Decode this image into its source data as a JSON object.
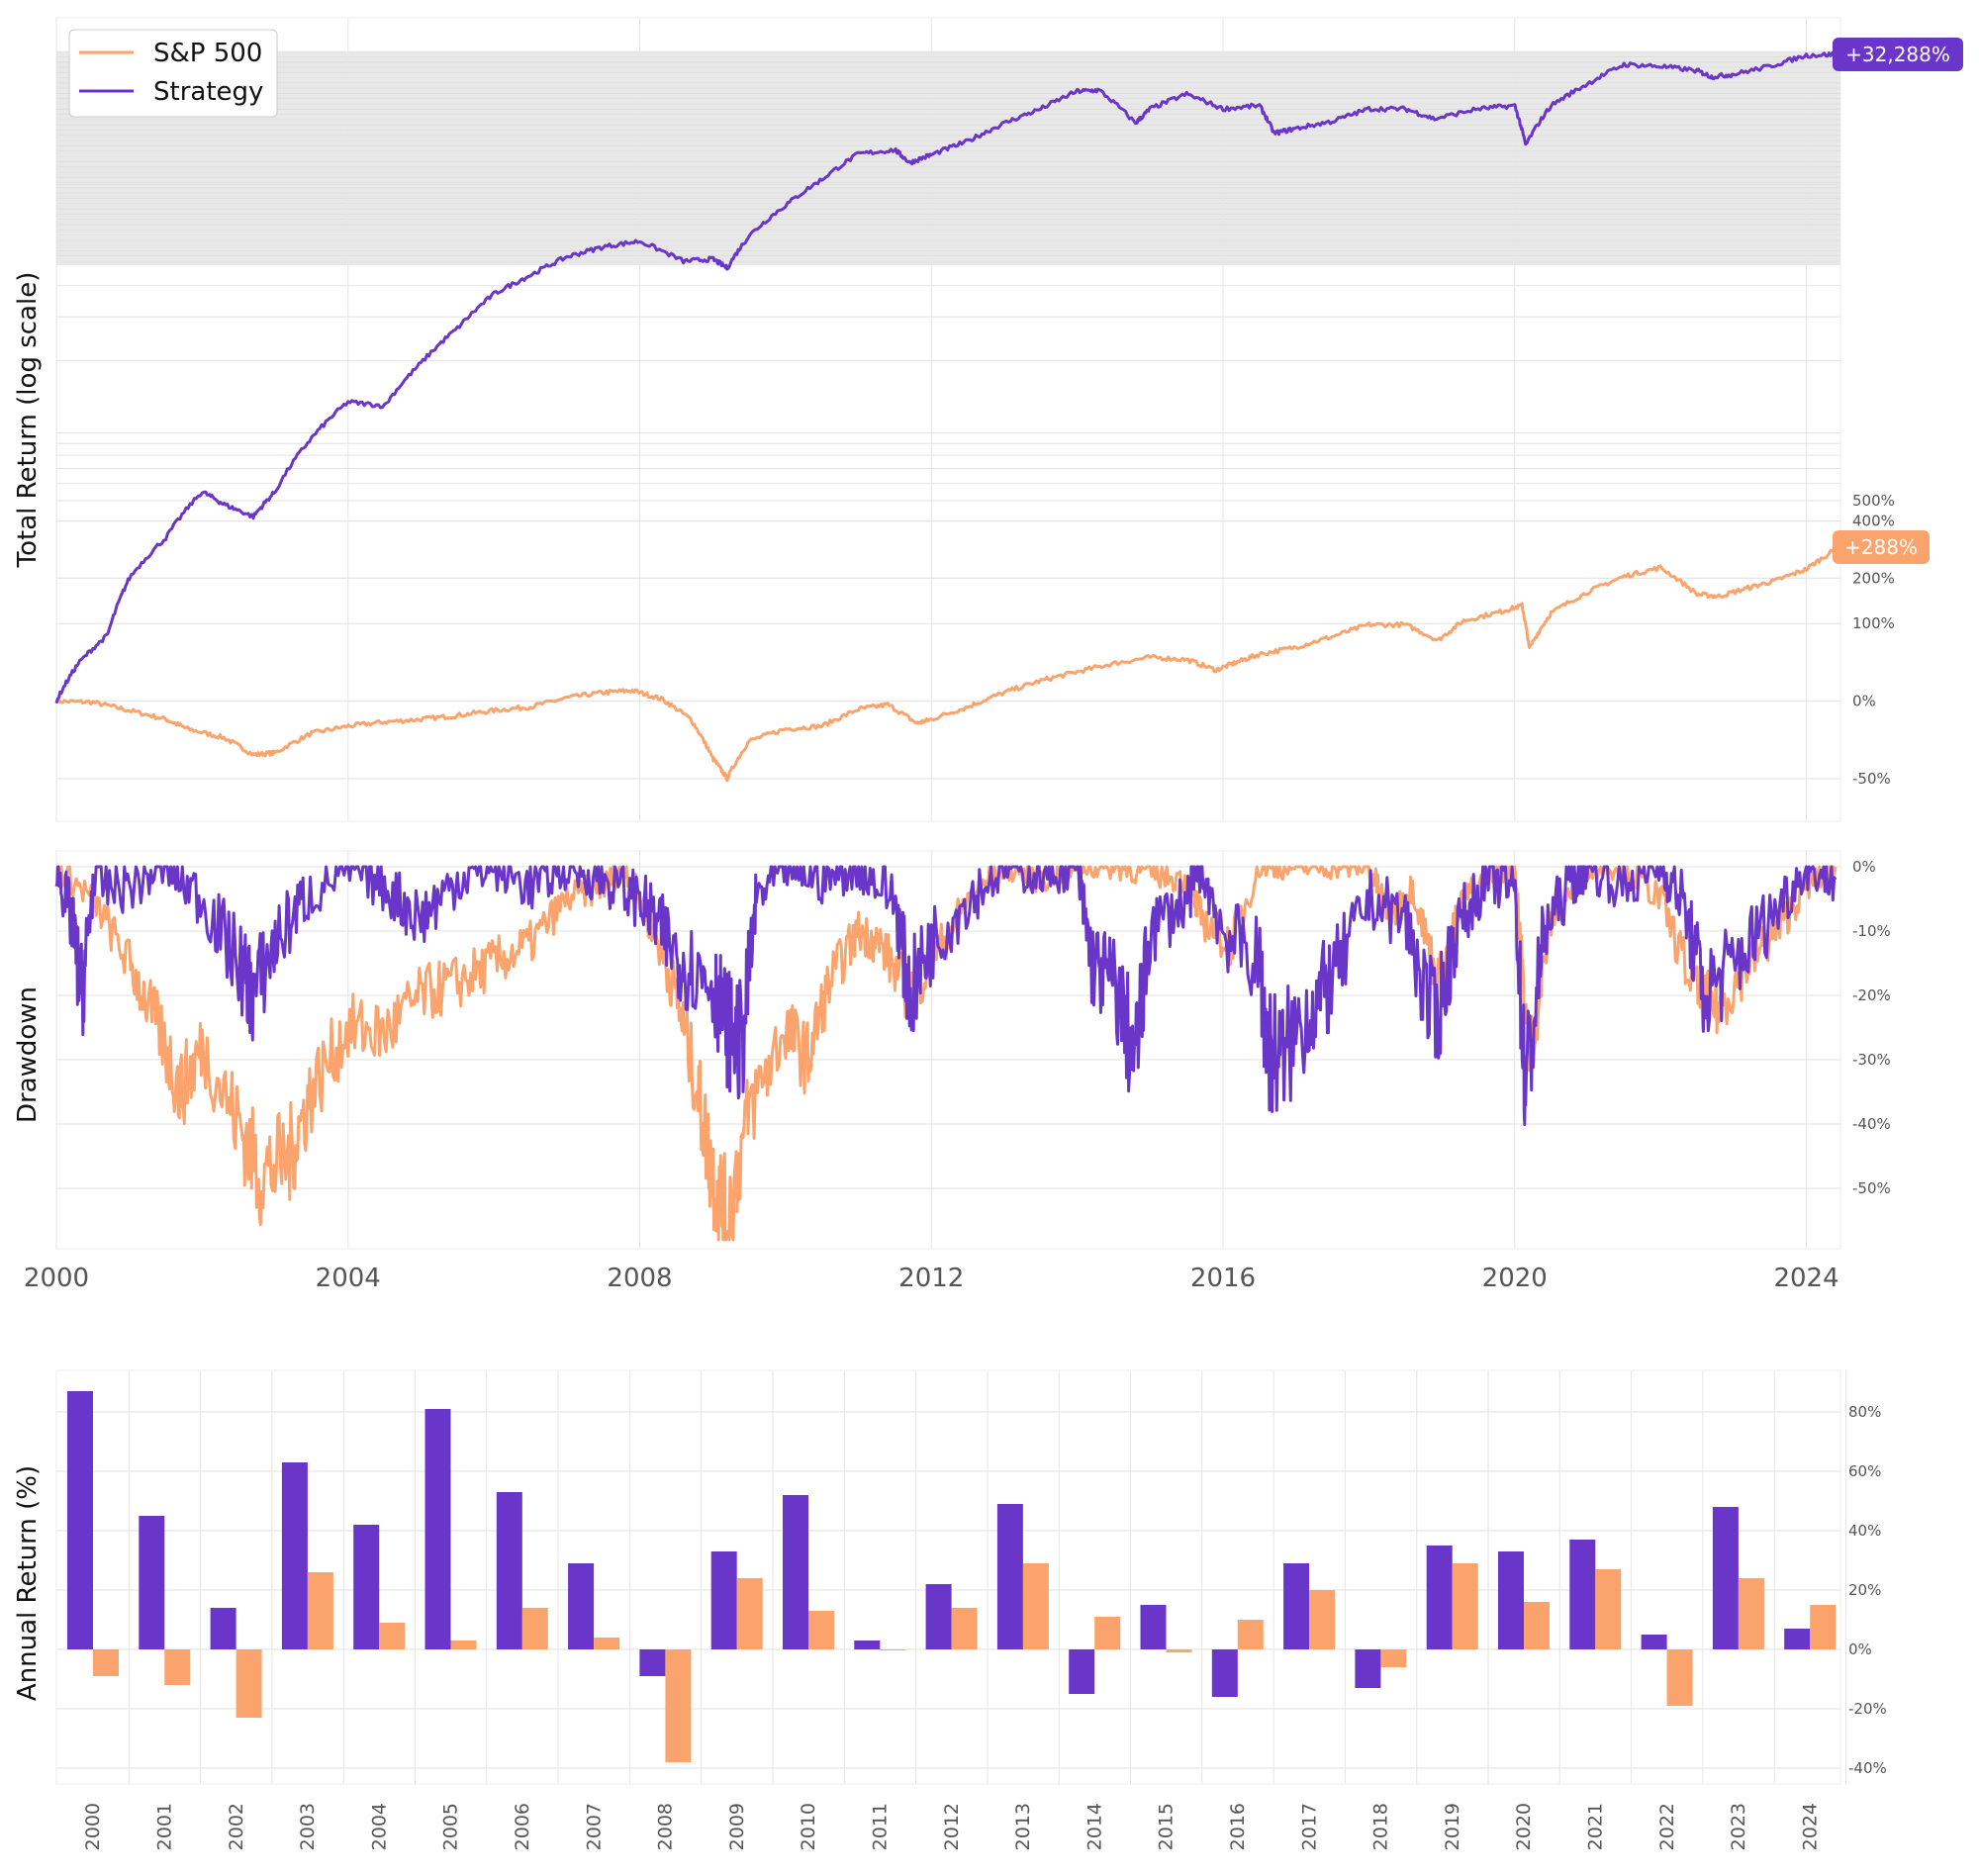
{
  "colors": {
    "strategy": "#6a35c9",
    "sp500": "#fba36c",
    "grid": "#e6e6e6",
    "band": "#e3e3e3"
  },
  "chart_data": [
    {
      "type": "line",
      "name": "total-return",
      "ylabel": "Total Return (log scale)",
      "yscale": "log",
      "xlim": [
        2000,
        2024.4
      ],
      "yticks": [
        "-50%",
        "0%",
        "100%",
        "200%",
        "400%",
        "500%"
      ],
      "ytick_values": [
        -50,
        0,
        100,
        200,
        400,
        500
      ],
      "legend": {
        "placement": "upper-left",
        "entries": [
          "S&P 500",
          "Strategy"
        ]
      },
      "series": [
        {
          "name": "S&P 500",
          "end_label": "+288%",
          "x": [
            2000,
            2000.5,
            2001,
            2001.5,
            2001.8,
            2002.3,
            2002.7,
            2003.0,
            2003.5,
            2004.0,
            2004.5,
            2005.0,
            2005.5,
            2006.0,
            2006.5,
            2007.0,
            2007.5,
            2007.9,
            2008.3,
            2008.7,
            2009.0,
            2009.2,
            2009.5,
            2010.0,
            2010.5,
            2011.0,
            2011.4,
            2011.8,
            2012.0,
            2012.5,
            2013.0,
            2013.5,
            2014.0,
            2014.5,
            2015.0,
            2015.5,
            2015.9,
            2016.2,
            2016.5,
            2017.0,
            2017.5,
            2018.0,
            2018.5,
            2018.95,
            2019.3,
            2019.8,
            2020.1,
            2020.2,
            2020.5,
            2021.0,
            2021.5,
            2022.0,
            2022.5,
            2022.8,
            2023.2,
            2023.6,
            2024.0,
            2024.4
          ],
          "y": [
            0,
            -1,
            -8,
            -15,
            -22,
            -28,
            -38,
            -37,
            -25,
            -20,
            -17,
            -15,
            -12,
            -8,
            -5,
            3,
            8,
            10,
            2,
            -15,
            -40,
            -50,
            -30,
            -22,
            -20,
            -7,
            -3,
            -18,
            -15,
            -5,
            8,
            20,
            30,
            40,
            48,
            45,
            32,
            42,
            52,
            62,
            78,
            98,
            98,
            72,
            105,
            122,
            135,
            60,
            120,
            165,
            205,
            230,
            160,
            155,
            175,
            195,
            225,
            288
          ]
        },
        {
          "name": "Strategy",
          "end_label": "+32,288%",
          "x": [
            2000,
            2000.3,
            2000.7,
            2001.0,
            2001.5,
            2002.0,
            2002.3,
            2002.7,
            2003.0,
            2003.5,
            2004.0,
            2004.5,
            2005.0,
            2005.5,
            2006.0,
            2006.5,
            2007.0,
            2007.5,
            2008.0,
            2008.6,
            2009.0,
            2009.2,
            2009.5,
            2010.0,
            2010.5,
            2011.0,
            2011.5,
            2011.7,
            2012.0,
            2012.5,
            2013.0,
            2013.5,
            2014.0,
            2014.3,
            2014.8,
            2015.0,
            2015.5,
            2016.0,
            2016.5,
            2016.7,
            2017.0,
            2017.5,
            2018.0,
            2018.5,
            2018.9,
            2019.5,
            2020.0,
            2020.15,
            2020.5,
            2021.0,
            2021.5,
            2022.0,
            2022.5,
            2022.7,
            2023.0,
            2023.5,
            2024.0,
            2024.4
          ],
          "y": [
            0,
            40,
            80,
            200,
            330,
            550,
            480,
            420,
            550,
            950,
            1350,
            1300,
            1950,
            2700,
            3700,
            4400,
            5200,
            5700,
            6000,
            5000,
            5100,
            4700,
            6300,
            8300,
            10500,
            13200,
            13700,
            12200,
            13100,
            14800,
            17400,
            19800,
            23200,
            23400,
            17400,
            19800,
            22600,
            19800,
            20400,
            15900,
            16600,
            17700,
            19800,
            19800,
            18100,
            19800,
            20400,
            14300,
            20400,
            24800,
            29500,
            29000,
            27900,
            26400,
            27000,
            29000,
            32000,
            32288
          ]
        }
      ]
    },
    {
      "type": "line",
      "name": "drawdown",
      "ylabel": "Drawdown",
      "ylim": [
        -60,
        0
      ],
      "yticks": [
        "0%",
        "-10%",
        "-20%",
        "-30%",
        "-40%",
        "-50%"
      ],
      "ytick_values": [
        0,
        -10,
        -20,
        -30,
        -40,
        -50
      ],
      "xticks": [
        "2000",
        "2004",
        "2008",
        "2012",
        "2016",
        "2020",
        "2024"
      ],
      "xtick_values": [
        2000,
        2004,
        2008,
        2012,
        2016,
        2020,
        2024
      ],
      "series": [
        {
          "name": "S&P 500",
          "x": [
            2000,
            2000.5,
            2001.0,
            2001.4,
            2001.7,
            2002.0,
            2002.5,
            2002.8,
            2003.2,
            2003.5,
            2004.0,
            2004.5,
            2005.0,
            2005.5,
            2006.0,
            2006.5,
            2007.0,
            2007.5,
            2007.8,
            2008.2,
            2008.5,
            2008.8,
            2009.0,
            2009.2,
            2009.5,
            2010.0,
            2010.3,
            2010.6,
            2011.0,
            2011.3,
            2011.7,
            2012.0,
            2012.5,
            2013.0,
            2013.5,
            2014.0,
            2014.5,
            2015.0,
            2015.5,
            2015.7,
            2016.1,
            2016.5,
            2017.0,
            2017.5,
            2018.0,
            2018.3,
            2018.6,
            2018.95,
            2019.3,
            2019.7,
            2020.0,
            2020.2,
            2020.5,
            2021.0,
            2021.5,
            2022.0,
            2022.5,
            2022.8,
            2023.2,
            2023.6,
            2024.0,
            2024.4
          ],
          "y": [
            0,
            -5,
            -15,
            -25,
            -35,
            -28,
            -40,
            -48,
            -45,
            -35,
            -25,
            -26,
            -20,
            -18,
            -15,
            -12,
            -5,
            -3,
            0,
            -10,
            -20,
            -35,
            -48,
            -55,
            -38,
            -25,
            -30,
            -18,
            -10,
            -12,
            -20,
            -15,
            -5,
            0,
            -2,
            0,
            0,
            -1,
            -2,
            -8,
            -12,
            0,
            0,
            0,
            0,
            -8,
            -3,
            -18,
            -5,
            -1,
            0,
            -30,
            -8,
            0,
            0,
            -5,
            -20,
            -22,
            -15,
            -10,
            -3,
            0
          ]
        },
        {
          "name": "Strategy",
          "x": [
            2000,
            2000.2,
            2000.35,
            2000.5,
            2001.0,
            2001.5,
            2002.0,
            2002.5,
            2002.7,
            2003.0,
            2003.4,
            2004.0,
            2004.5,
            2005.0,
            2005.5,
            2006.0,
            2006.5,
            2007.0,
            2007.5,
            2008.0,
            2008.3,
            2008.6,
            2009.0,
            2009.2,
            2009.4,
            2009.6,
            2010.0,
            2010.5,
            2011.0,
            2011.5,
            2011.7,
            2012.0,
            2012.5,
            2013.0,
            2013.5,
            2014.0,
            2014.2,
            2014.5,
            2014.8,
            2015.0,
            2015.5,
            2015.7,
            2016.0,
            2016.5,
            2016.6,
            2016.8,
            2017.2,
            2017.5,
            2018.0,
            2018.5,
            2018.9,
            2019.2,
            2019.6,
            2020.0,
            2020.15,
            2020.4,
            2020.8,
            2021.0,
            2021.5,
            2022.0,
            2022.3,
            2022.6,
            2023.0,
            2023.5,
            2024.0,
            2024.4
          ],
          "y": [
            0,
            -8,
            -20,
            -3,
            -3,
            0,
            -5,
            -15,
            -20,
            -12,
            -5,
            0,
            -3,
            -8,
            -2,
            0,
            -3,
            0,
            -2,
            -5,
            -10,
            -15,
            -18,
            -25,
            -28,
            -5,
            0,
            -2,
            0,
            -5,
            -20,
            -12,
            -5,
            0,
            -1,
            0,
            -15,
            -18,
            -30,
            -10,
            -5,
            0,
            -10,
            -15,
            -28,
            -30,
            -22,
            -18,
            -5,
            -8,
            -25,
            -10,
            -2,
            -3,
            -35,
            -10,
            -2,
            0,
            -3,
            0,
            -5,
            -20,
            -15,
            -8,
            0,
            -2
          ]
        }
      ]
    },
    {
      "type": "bar",
      "name": "annual-return",
      "ylabel": "Annual Return (%)",
      "ylim": [
        -45,
        92
      ],
      "yticks": [
        "80%",
        "60%",
        "40%",
        "20%",
        "0%",
        "-20%",
        "-40%"
      ],
      "ytick_values": [
        80,
        60,
        40,
        20,
        0,
        -20,
        -40
      ],
      "categories": [
        "2000",
        "2001",
        "2002",
        "2003",
        "2004",
        "2005",
        "2006",
        "2007",
        "2008",
        "2009",
        "2010",
        "2011",
        "2012",
        "2013",
        "2014",
        "2015",
        "2016",
        "2017",
        "2018",
        "2019",
        "2020",
        "2021",
        "2022",
        "2023",
        "2024"
      ],
      "series": [
        {
          "name": "Strategy",
          "values": [
            87,
            45,
            14,
            63,
            42,
            81,
            53,
            29,
            -9,
            33,
            52,
            3,
            22,
            49,
            -15,
            15,
            -16,
            29,
            -13,
            35,
            33,
            37,
            5,
            48,
            7
          ]
        },
        {
          "name": "S&P 500",
          "values": [
            -9,
            -12,
            -23,
            26,
            9,
            3,
            14,
            4,
            -38,
            24,
            13,
            0,
            14,
            29,
            11,
            -1,
            10,
            20,
            -6,
            29,
            16,
            27,
            -19,
            24,
            15
          ]
        }
      ]
    }
  ]
}
